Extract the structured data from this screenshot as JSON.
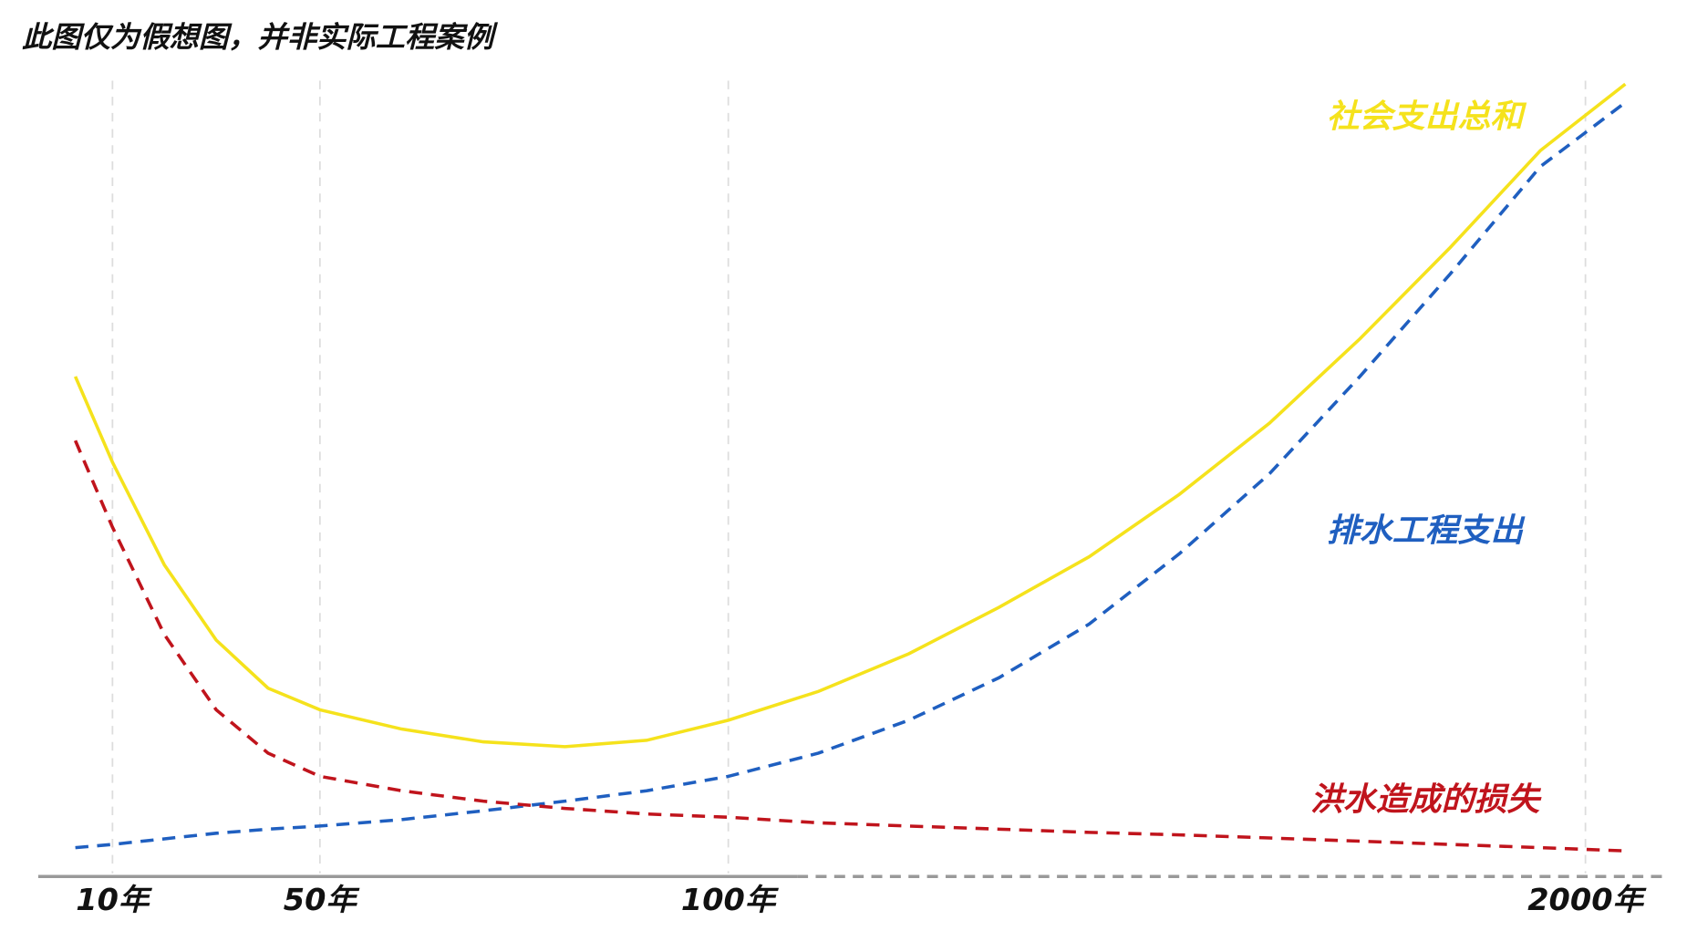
{
  "chart_data": {
    "type": "line",
    "title": "此图仅为假想图，并非实际工程案例",
    "x": [
      5,
      10,
      20,
      30,
      40,
      50,
      60,
      70,
      80,
      90,
      100,
      300,
      500,
      700,
      900,
      1100,
      1300,
      1500,
      1700,
      1900,
      2100
    ],
    "xlim": [
      0,
      2200
    ],
    "xticks": [
      {
        "value": 10,
        "label": "10年"
      },
      {
        "value": 50,
        "label": "50年"
      },
      {
        "value": 100,
        "label": "100年"
      },
      {
        "value": 2000,
        "label": "2000年"
      }
    ],
    "ylim": [
      0,
      100
    ],
    "grid": true,
    "series": [
      {
        "name": "社会支出总和",
        "color": "#f5e21c",
        "dashed": false,
        "values": [
          62.4,
          51.7,
          38.9,
          29.5,
          23.5,
          20.8,
          18.4,
          16.8,
          16.2,
          17.0,
          19.5,
          23.1,
          27.8,
          33.6,
          39.9,
          47.7,
          56.6,
          67.1,
          78.5,
          90.6,
          98.9
        ]
      },
      {
        "name": "排水工程支出",
        "color": "#1f5fc0",
        "dashed": true,
        "values": [
          3.6,
          4.0,
          4.7,
          5.4,
          5.9,
          6.3,
          7.1,
          8.2,
          9.4,
          10.7,
          12.5,
          15.4,
          19.5,
          24.8,
          31.5,
          40.3,
          50.3,
          62.4,
          75.2,
          88.6,
          96.6
        ]
      },
      {
        "name": "洪水造成的损失",
        "color": "#c0141c",
        "dashed": true,
        "values": [
          54.4,
          43.6,
          30.2,
          20.8,
          15.4,
          12.5,
          10.7,
          9.4,
          8.5,
          7.8,
          7.4,
          6.7,
          6.3,
          5.9,
          5.5,
          5.2,
          4.8,
          4.4,
          4.0,
          3.6,
          3.2
        ]
      }
    ]
  }
}
